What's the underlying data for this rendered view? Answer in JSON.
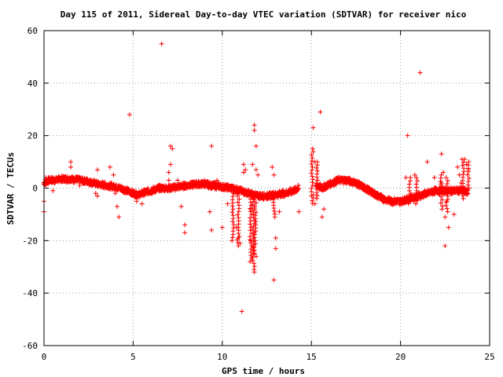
{
  "chart_data": {
    "type": "scatter",
    "title": "Day 115 of 2011, Sidereal Day-to-day VTEC variation (SDTVAR) for receiver nico",
    "xlabel": "GPS time / hours",
    "ylabel": "SDTVAR / TECUs",
    "xlim": [
      0,
      25
    ],
    "ylim": [
      -60,
      60
    ],
    "xticks": [
      0,
      5,
      10,
      15,
      20,
      25
    ],
    "yticks": [
      -60,
      -40,
      -20,
      0,
      20,
      40,
      60
    ],
    "xtick_labels": [
      "0",
      "5",
      "10",
      "15",
      "20",
      "25"
    ],
    "ytick_labels": [
      "-60",
      "-40",
      "-20",
      "0",
      "20",
      "40",
      "60"
    ],
    "grid": true,
    "marker": "+",
    "color": "#ff0000",
    "band_series": [
      [
        0.0,
        2
      ],
      [
        0.3,
        3
      ],
      [
        0.6,
        3
      ],
      [
        1.0,
        3.5
      ],
      [
        1.5,
        3.5
      ],
      [
        2.0,
        3
      ],
      [
        2.5,
        2.5
      ],
      [
        3.0,
        1.5
      ],
      [
        3.5,
        1
      ],
      [
        4.0,
        0.5
      ],
      [
        4.5,
        -0.5
      ],
      [
        5.0,
        -2
      ],
      [
        5.3,
        -2.5
      ],
      [
        5.7,
        -1.5
      ],
      [
        6.0,
        -1
      ],
      [
        6.5,
        0
      ],
      [
        7.0,
        0
      ],
      [
        7.5,
        0.5
      ],
      [
        8.0,
        1
      ],
      [
        8.5,
        1.5
      ],
      [
        9.0,
        1.5
      ],
      [
        9.5,
        1
      ],
      [
        10.0,
        0.5
      ],
      [
        10.5,
        0
      ],
      [
        11.0,
        -1
      ],
      [
        11.5,
        -2
      ],
      [
        12.0,
        -3
      ],
      [
        12.5,
        -3
      ],
      [
        13.0,
        -2.5
      ],
      [
        13.5,
        -2
      ],
      [
        14.0,
        -1
      ],
      [
        14.3,
        0
      ],
      [
        15.3,
        1
      ],
      [
        15.6,
        0
      ],
      [
        16.0,
        1.5
      ],
      [
        16.5,
        3
      ],
      [
        17.0,
        3
      ],
      [
        17.5,
        2
      ],
      [
        18.0,
        0
      ],
      [
        18.5,
        -2
      ],
      [
        19.0,
        -4
      ],
      [
        19.5,
        -5
      ],
      [
        20.0,
        -5
      ],
      [
        20.5,
        -4
      ],
      [
        21.0,
        -3
      ],
      [
        21.5,
        -2
      ],
      [
        22.0,
        -1
      ],
      [
        22.5,
        -1
      ],
      [
        23.0,
        -1
      ],
      [
        23.5,
        -1
      ],
      [
        23.8,
        -1.5
      ]
    ],
    "outliers": [
      [
        0.0,
        -5
      ],
      [
        0.0,
        -9
      ],
      [
        0.1,
        4
      ],
      [
        0.5,
        -1
      ],
      [
        1.5,
        10
      ],
      [
        1.5,
        8
      ],
      [
        2.0,
        1
      ],
      [
        2.9,
        -2
      ],
      [
        3.0,
        7
      ],
      [
        3.0,
        -3
      ],
      [
        3.7,
        8
      ],
      [
        3.9,
        5
      ],
      [
        4.0,
        -2
      ],
      [
        4.1,
        -7
      ],
      [
        4.2,
        -11
      ],
      [
        4.8,
        -2
      ],
      [
        4.8,
        28
      ],
      [
        5.2,
        -5
      ],
      [
        5.5,
        -6
      ],
      [
        6.6,
        55
      ],
      [
        7.0,
        6
      ],
      [
        7.0,
        3
      ],
      [
        7.1,
        16
      ],
      [
        7.1,
        9
      ],
      [
        7.2,
        15
      ],
      [
        7.5,
        3
      ],
      [
        7.7,
        -7
      ],
      [
        7.9,
        -14
      ],
      [
        7.9,
        -17
      ],
      [
        8.2,
        2
      ],
      [
        9.0,
        3
      ],
      [
        9.3,
        -9
      ],
      [
        9.4,
        -16
      ],
      [
        9.4,
        16
      ],
      [
        9.7,
        3
      ],
      [
        10.0,
        -15
      ],
      [
        10.3,
        -6
      ],
      [
        10.8,
        -15
      ],
      [
        10.9,
        -19
      ],
      [
        11.0,
        -21
      ],
      [
        11.2,
        9
      ],
      [
        11.2,
        6
      ],
      [
        11.1,
        -47
      ],
      [
        11.3,
        7
      ],
      [
        11.6,
        -8
      ],
      [
        11.6,
        -20
      ],
      [
        11.7,
        9
      ],
      [
        11.8,
        24
      ],
      [
        11.8,
        22
      ],
      [
        11.9,
        16
      ],
      [
        11.9,
        7
      ],
      [
        11.8,
        -32
      ],
      [
        12.0,
        5
      ],
      [
        12.1,
        -2
      ],
      [
        12.7,
        -4
      ],
      [
        12.8,
        8
      ],
      [
        12.9,
        5
      ],
      [
        12.9,
        -35
      ],
      [
        13.0,
        -19
      ],
      [
        13.0,
        -23
      ],
      [
        13.2,
        -9
      ],
      [
        14.3,
        -9
      ],
      [
        15.0,
        -3
      ],
      [
        15.1,
        23
      ],
      [
        15.2,
        10
      ],
      [
        15.2,
        -6
      ],
      [
        15.5,
        29
      ],
      [
        15.6,
        -11
      ],
      [
        15.7,
        -8
      ],
      [
        20.3,
        4
      ],
      [
        20.4,
        20
      ],
      [
        20.8,
        5
      ],
      [
        20.9,
        -4
      ],
      [
        21.1,
        44
      ],
      [
        21.5,
        10
      ],
      [
        21.9,
        4
      ],
      [
        22.3,
        13
      ],
      [
        22.3,
        2
      ],
      [
        22.4,
        6
      ],
      [
        22.5,
        -22
      ],
      [
        22.5,
        -11
      ],
      [
        22.7,
        -15
      ],
      [
        22.6,
        -5
      ],
      [
        23.0,
        -10
      ],
      [
        23.2,
        8
      ],
      [
        23.3,
        5
      ],
      [
        23.4,
        2
      ],
      [
        23.6,
        11
      ],
      [
        23.7,
        9
      ],
      [
        23.8,
        7
      ]
    ],
    "spikes": [
      {
        "x": 10.6,
        "from": -2,
        "to": -20
      },
      {
        "x": 10.9,
        "from": -3,
        "to": -22
      },
      {
        "x": 11.6,
        "from": -3,
        "to": -28
      },
      {
        "x": 11.75,
        "from": -4,
        "to": -31
      },
      {
        "x": 11.85,
        "from": -2,
        "to": -26
      },
      {
        "x": 12.9,
        "from": -2,
        "to": -11
      },
      {
        "x": 15.05,
        "from": -6,
        "to": 15
      },
      {
        "x": 15.3,
        "from": -4,
        "to": 10
      },
      {
        "x": 20.5,
        "from": -6,
        "to": 4
      },
      {
        "x": 20.9,
        "from": -6,
        "to": 4
      },
      {
        "x": 22.3,
        "from": -8,
        "to": 5
      },
      {
        "x": 22.6,
        "from": -9,
        "to": 4
      },
      {
        "x": 23.5,
        "from": -4,
        "to": 11
      },
      {
        "x": 23.8,
        "from": 0,
        "to": 10
      }
    ]
  }
}
